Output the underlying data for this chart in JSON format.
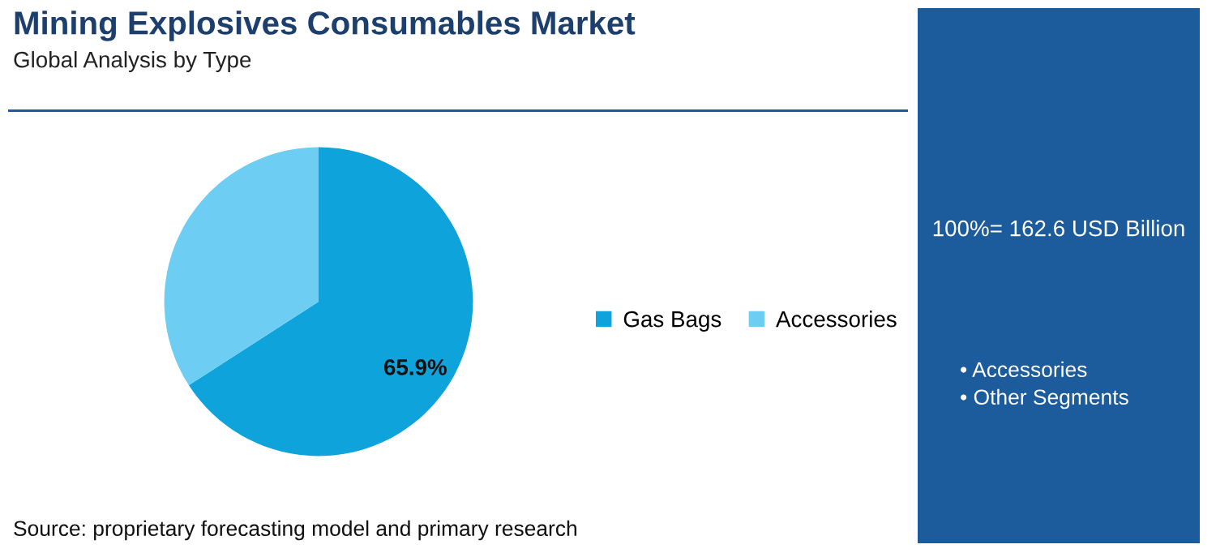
{
  "chart_data": {
    "type": "pie",
    "title": "Mining Explosives Consumables Market",
    "subtitle": "Global Analysis by Type",
    "categories": [
      "Gas Bags",
      "Accessories"
    ],
    "values": [
      65.9,
      34.1
    ],
    "colors": [
      "#0fa3dc",
      "#6ecdf2"
    ],
    "value_labels": [
      "65.9%",
      null
    ],
    "legend": "right",
    "annotations": [
      "100%= 162.6 USD Billion",
      "• Accessories",
      "• Other Segments",
      "Source: proprietary forecasting model and primary research"
    ]
  }
}
